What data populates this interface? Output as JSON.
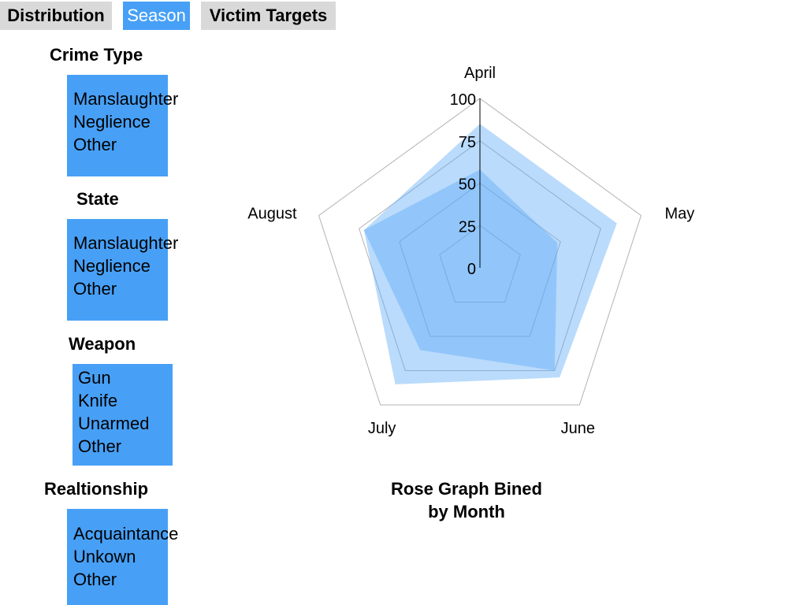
{
  "tabs": [
    {
      "label": "Distribution",
      "active": false
    },
    {
      "label": "Season",
      "active": true
    },
    {
      "label": "Victim Targets",
      "active": false
    }
  ],
  "filters": {
    "crime_type": {
      "heading": "Crime Type",
      "options": [
        "Manslaughter",
        "Neglience",
        "Other"
      ]
    },
    "state": {
      "heading": "State",
      "options": [
        "Manslaughter",
        "Neglience",
        "Other"
      ]
    },
    "weapon": {
      "heading": "Weapon",
      "options": [
        "Gun",
        "Knife",
        "Unarmed",
        "Other"
      ]
    },
    "relationship": {
      "heading": "Realtionship",
      "options": [
        "Acquaintance",
        "Unkown",
        "Other"
      ]
    }
  },
  "colors": {
    "accent": "#47a0f6",
    "tab_inactive": "#d9d9d9",
    "series_fill": "#5aaaf7",
    "grid": "#b3b3b3"
  },
  "chart_data": {
    "type": "radar",
    "title_lines": [
      "Rose Graph Bined",
      "by Month"
    ],
    "categories": [
      "April",
      "May",
      "June",
      "July",
      "August"
    ],
    "rlim": [
      0,
      100
    ],
    "ticks": [
      "0",
      "25",
      "50",
      "75",
      "100"
    ],
    "grid": true,
    "series": [
      {
        "values": [
          85,
          85,
          80,
          85,
          72
        ]
      },
      {
        "values": [
          58,
          48,
          75,
          60,
          72
        ]
      }
    ]
  }
}
